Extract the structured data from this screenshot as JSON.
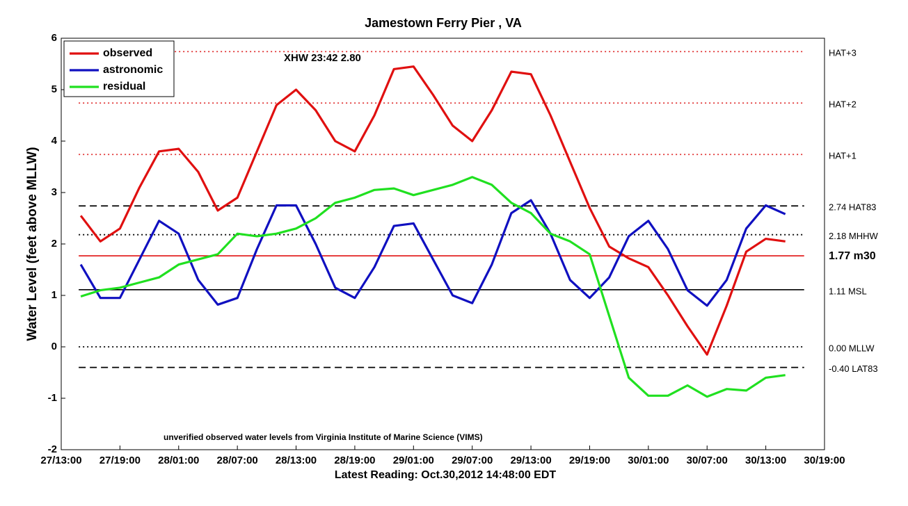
{
  "chart_data": {
    "type": "line",
    "title": "Jamestown Ferry Pier , VA",
    "ylabel": "Water Level (feet above MLLW)",
    "xlabel": "Latest Reading: Oct.30,2012 14:48:00 EDT",
    "annotations": [
      "XHW 23:42 2.80",
      "unverified observed water levels from Virginia Institute of Marine Science (VIMS)"
    ],
    "legend": "upper left",
    "ylim": [
      -2,
      6
    ],
    "yticks": [
      -2,
      -1,
      0,
      1,
      2,
      3,
      4,
      5,
      6
    ],
    "xlim": [
      "2012-10-27T13:00",
      "2012-10-30T19:00"
    ],
    "xticks": [
      {
        "value": "2012-10-27T13:00",
        "label": "27/13:00"
      },
      {
        "value": "2012-10-27T19:00",
        "label": "27/19:00"
      },
      {
        "value": "2012-10-28T01:00",
        "label": "28/01:00"
      },
      {
        "value": "2012-10-28T07:00",
        "label": "28/07:00"
      },
      {
        "value": "2012-10-28T13:00",
        "label": "28/13:00"
      },
      {
        "value": "2012-10-28T19:00",
        "label": "28/19:00"
      },
      {
        "value": "2012-10-29T01:00",
        "label": "29/01:00"
      },
      {
        "value": "2012-10-29T07:00",
        "label": "29/07:00"
      },
      {
        "value": "2012-10-29T13:00",
        "label": "29/13:00"
      },
      {
        "value": "2012-10-29T19:00",
        "label": "29/19:00"
      },
      {
        "value": "2012-10-30T01:00",
        "label": "30/01:00"
      },
      {
        "value": "2012-10-30T07:00",
        "label": "30/07:00"
      },
      {
        "value": "2012-10-30T13:00",
        "label": "30/13:00"
      },
      {
        "value": "2012-10-30T19:00",
        "label": "30/19:00"
      }
    ],
    "reference_lines": [
      {
        "value": 5.74,
        "label": "HAT+3",
        "style": "dotted",
        "color": "#e03030"
      },
      {
        "value": 4.74,
        "label": "HAT+2",
        "style": "dotted",
        "color": "#e03030"
      },
      {
        "value": 3.74,
        "label": "HAT+1",
        "style": "dotted",
        "color": "#e03030"
      },
      {
        "value": 2.74,
        "label": "2.74 HAT83",
        "style": "dashed",
        "color": "#000000"
      },
      {
        "value": 2.18,
        "label": "2.18 MHHW",
        "style": "dotted",
        "color": "#000000"
      },
      {
        "value": 1.77,
        "label": "1.77 m30",
        "style": "solid",
        "color": "#e01010"
      },
      {
        "value": 1.11,
        "label": "1.11 MSL",
        "style": "solid",
        "color": "#000000"
      },
      {
        "value": 0,
        "label": "0.00 MLLW",
        "style": "dotted",
        "color": "#000000"
      },
      {
        "value": -0.4,
        "label": "-0.40 LAT83",
        "style": "dashed",
        "color": "#000000"
      }
    ],
    "x": [
      "2012-10-27T15:00",
      "2012-10-27T17:00",
      "2012-10-27T19:00",
      "2012-10-27T21:00",
      "2012-10-27T23:00",
      "2012-10-28T01:00",
      "2012-10-28T03:00",
      "2012-10-28T05:00",
      "2012-10-28T07:00",
      "2012-10-28T09:00",
      "2012-10-28T11:00",
      "2012-10-28T13:00",
      "2012-10-28T15:00",
      "2012-10-28T17:00",
      "2012-10-28T19:00",
      "2012-10-28T21:00",
      "2012-10-28T23:00",
      "2012-10-29T01:00",
      "2012-10-29T03:00",
      "2012-10-29T05:00",
      "2012-10-29T07:00",
      "2012-10-29T09:00",
      "2012-10-29T11:00",
      "2012-10-29T13:00",
      "2012-10-29T15:00",
      "2012-10-29T17:00",
      "2012-10-29T19:00",
      "2012-10-29T21:00",
      "2012-10-29T23:00",
      "2012-10-30T01:00",
      "2012-10-30T03:00",
      "2012-10-30T05:00",
      "2012-10-30T07:00",
      "2012-10-30T09:00",
      "2012-10-30T11:00",
      "2012-10-30T13:00",
      "2012-10-30T15:00"
    ],
    "series": [
      {
        "name": "observed",
        "color": "#e01010",
        "values": [
          2.55,
          2.05,
          2.3,
          3.1,
          3.8,
          3.85,
          3.4,
          2.65,
          2.9,
          3.8,
          4.7,
          5.0,
          4.6,
          4.0,
          3.8,
          4.5,
          5.4,
          5.45,
          4.9,
          4.3,
          4.0,
          4.6,
          5.35,
          5.3,
          4.5,
          3.6,
          2.7,
          1.95,
          1.72,
          1.55,
          1.0,
          0.4,
          -0.15,
          0.8,
          1.85,
          2.1,
          2.05
        ]
      },
      {
        "name": "astronomic",
        "color": "#1010c0",
        "values": [
          1.6,
          0.95,
          0.95,
          1.7,
          2.45,
          2.2,
          1.3,
          0.82,
          0.95,
          1.9,
          2.75,
          2.75,
          2.0,
          1.15,
          0.95,
          1.55,
          2.35,
          2.4,
          1.7,
          1.0,
          0.85,
          1.6,
          2.6,
          2.85,
          2.2,
          1.3,
          0.95,
          1.35,
          2.15,
          2.45,
          1.9,
          1.1,
          0.8,
          1.3,
          2.3,
          2.75,
          2.58
        ]
      },
      {
        "name": "residual",
        "color": "#20e020",
        "values": [
          0.98,
          1.1,
          1.15,
          1.25,
          1.35,
          1.6,
          1.7,
          1.8,
          2.2,
          2.15,
          2.2,
          2.3,
          2.5,
          2.8,
          2.9,
          3.05,
          3.08,
          2.95,
          3.05,
          3.15,
          3.3,
          3.15,
          2.8,
          2.6,
          2.2,
          2.05,
          1.8,
          0.6,
          -0.6,
          -0.95,
          -0.95,
          -0.75,
          -0.97,
          -0.82,
          -0.85,
          -0.6,
          -0.55
        ]
      }
    ]
  }
}
